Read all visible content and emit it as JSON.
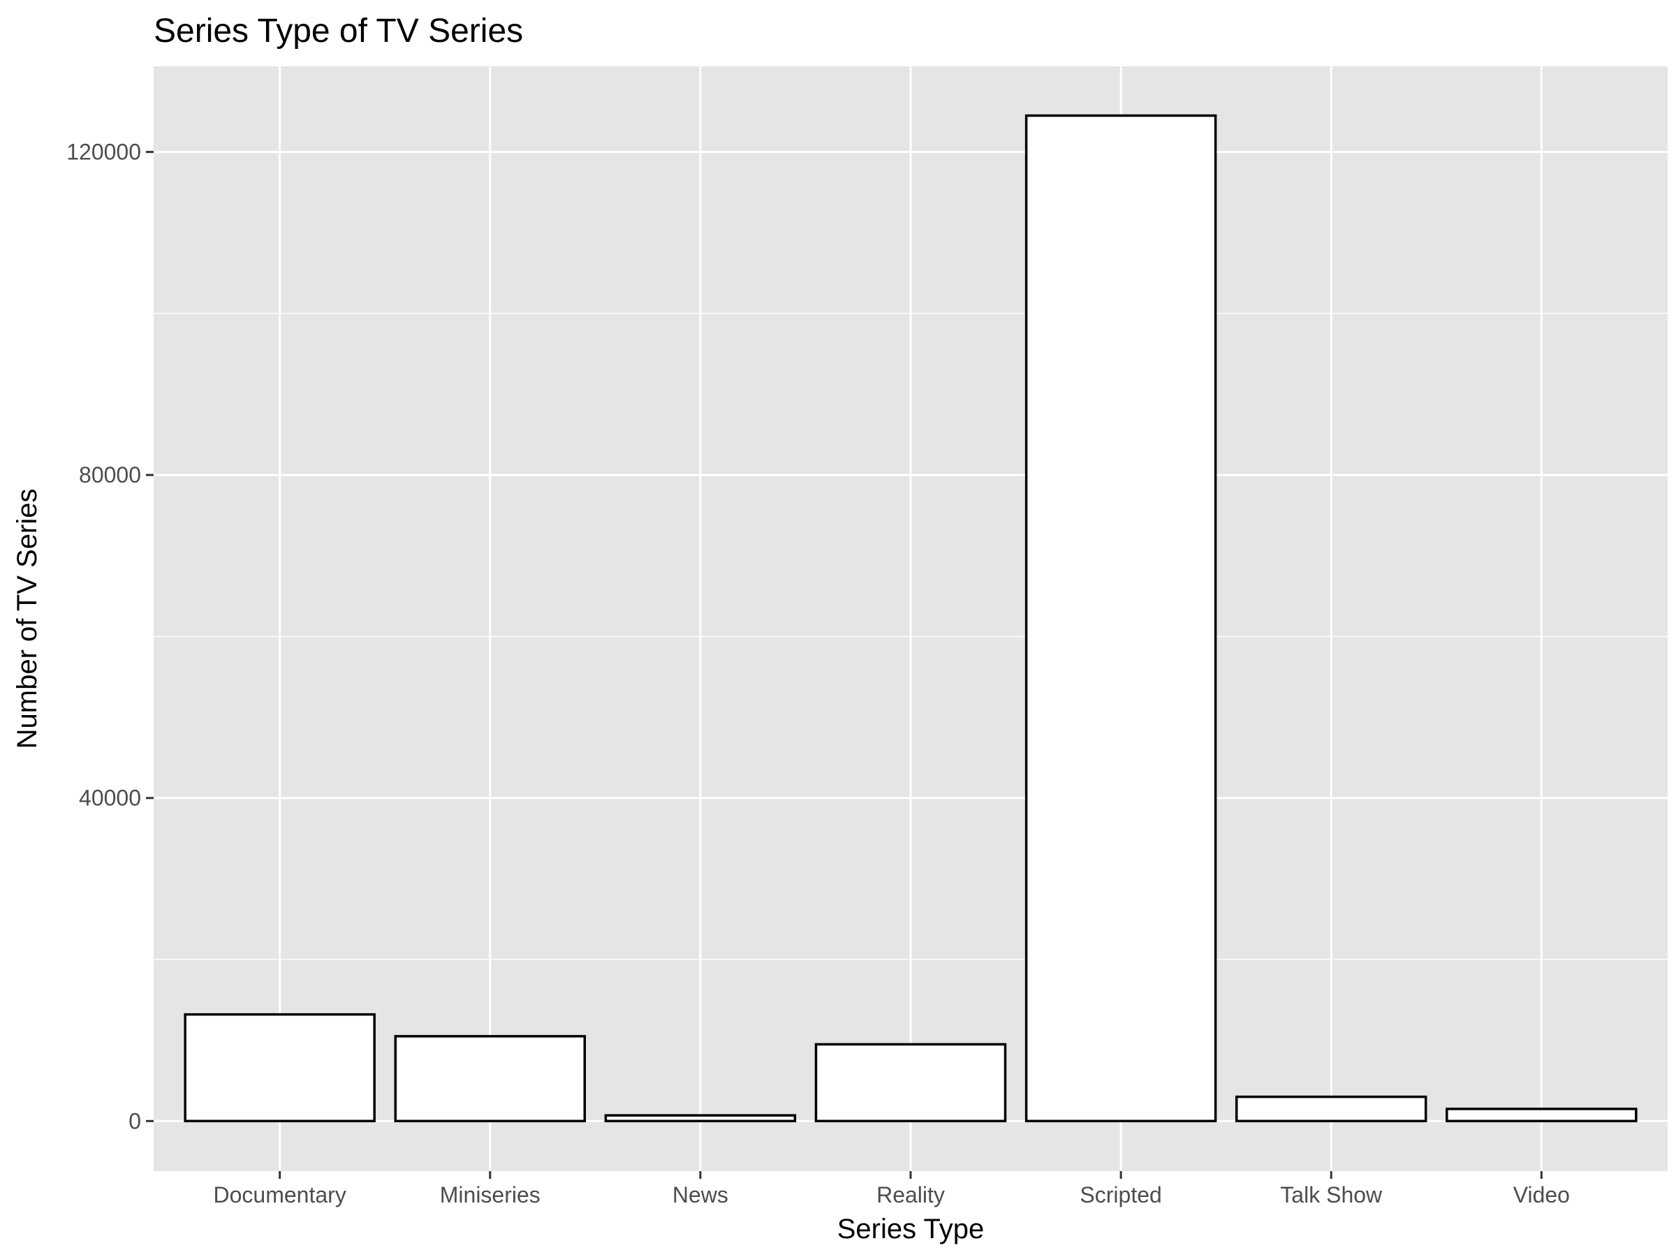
{
  "chart_data": {
    "type": "bar",
    "title": "Series Type of TV Series",
    "xlabel": "Series Type",
    "ylabel": "Number of TV Series",
    "categories": [
      "Documentary",
      "Miniseries",
      "News",
      "Reality",
      "Scripted",
      "Talk Show",
      "Video"
    ],
    "values": [
      13200,
      10500,
      700,
      9500,
      124500,
      3000,
      1500
    ],
    "ylim": [
      -6200,
      130600
    ],
    "yticks": [
      0,
      40000,
      80000,
      120000
    ],
    "ytick_labels": [
      "0",
      "40000",
      "80000",
      "120000"
    ],
    "grid": true,
    "legend": "none",
    "colors": {
      "panel_bg": "#e5e5e5",
      "grid": "#ffffff",
      "bar_fill": "#ffffff",
      "bar_stroke": "#000000",
      "tick_text": "#4d4d4d"
    }
  }
}
